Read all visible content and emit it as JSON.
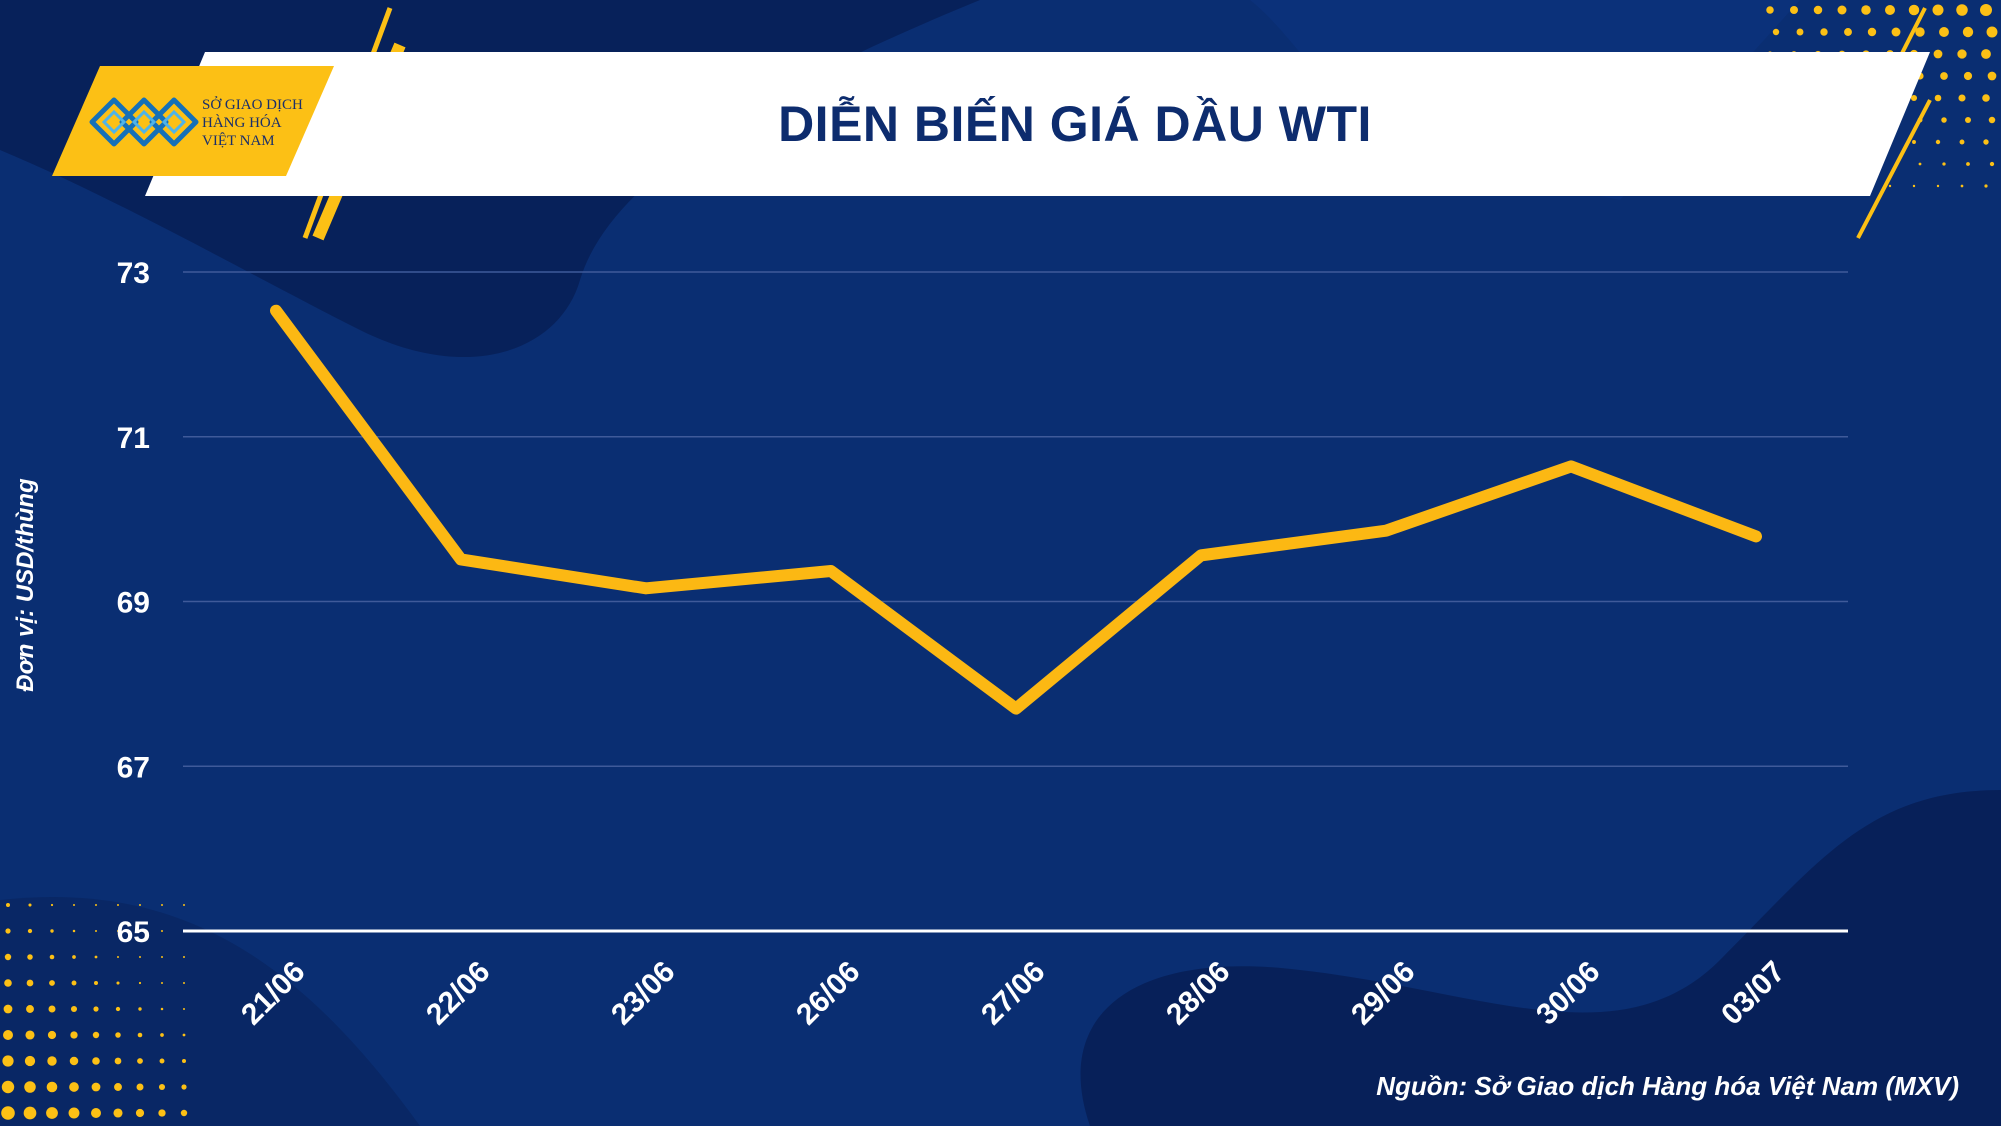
{
  "header": {
    "title": "DIỄN BIẾN GIÁ DẦU WTI",
    "logo_lines": [
      "SỞ GIAO DỊCH",
      "HÀNG HÓA",
      "VIỆT NAM"
    ]
  },
  "footer": {
    "source": "Nguồn: Sở Giao dịch Hàng hóa Việt Nam (MXV)"
  },
  "colors": {
    "background": "#0a2e72",
    "line": "#fcb813",
    "accent": "#fcc015",
    "text": "#ffffff"
  },
  "chart_data": {
    "type": "line",
    "title": "DIỄN BIẾN GIÁ DẦU WTI",
    "xlabel": "",
    "ylabel": "Đơn vị: USD/thùng",
    "categories": [
      "21/06",
      "22/06",
      "23/06",
      "26/06",
      "27/06",
      "28/06",
      "29/06",
      "30/06",
      "03/07"
    ],
    "series": [
      {
        "values": [
          72.53,
          69.51,
          69.16,
          69.37,
          67.7,
          69.56,
          69.86,
          70.64,
          69.79
        ]
      }
    ],
    "ylim": [
      65,
      73
    ],
    "yticks": [
      65,
      67,
      69,
      71,
      73
    ],
    "grid": true,
    "legend": "none"
  }
}
